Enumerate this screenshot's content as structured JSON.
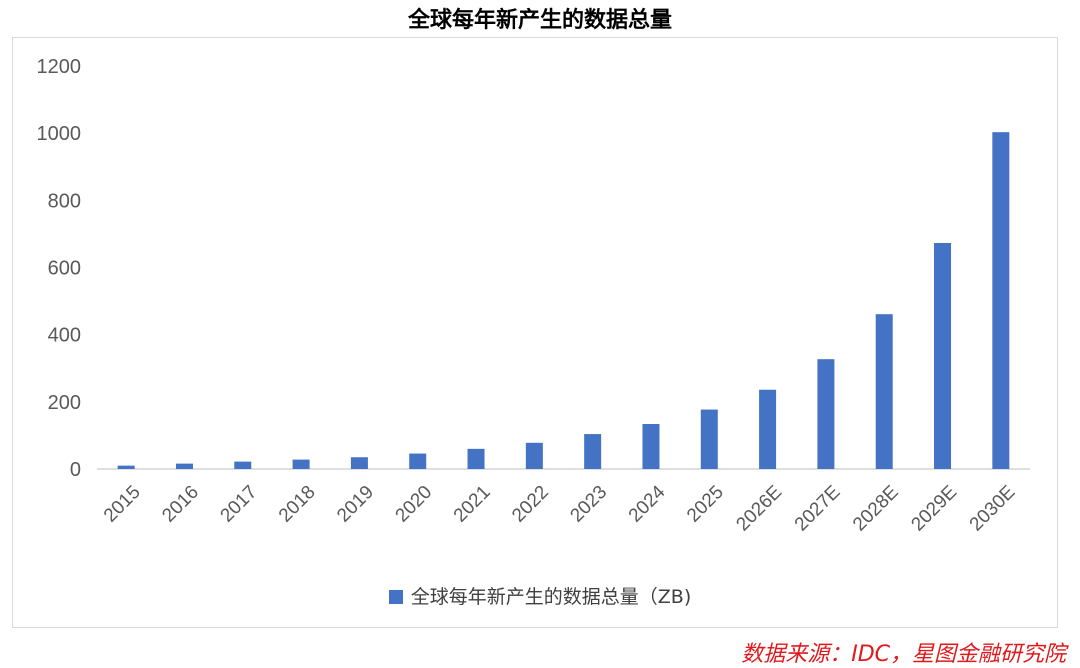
{
  "chart_data": {
    "type": "bar",
    "title": "全球每年新产生的数据总量",
    "categories": [
      "2015",
      "2016",
      "2017",
      "2018",
      "2019",
      "2020",
      "2021",
      "2022",
      "2023",
      "2024",
      "2025",
      "2026E",
      "2027E",
      "2028E",
      "2029E",
      "2030E"
    ],
    "series": [
      {
        "name": "全球每年新产生的数据总量（ZB)",
        "values": [
          10,
          16,
          22,
          28,
          35,
          46,
          60,
          78,
          104,
          134,
          177,
          236,
          327,
          461,
          673,
          1003
        ]
      }
    ],
    "y_ticks": [
      "0",
      "200",
      "400",
      "600",
      "800",
      "1000",
      "1200"
    ],
    "ylim": [
      0,
      1200
    ],
    "grid": false,
    "legend_position": "bottom",
    "bar_color": "#4472c4"
  },
  "source_note": "数据来源：IDC，星图金融研究院"
}
